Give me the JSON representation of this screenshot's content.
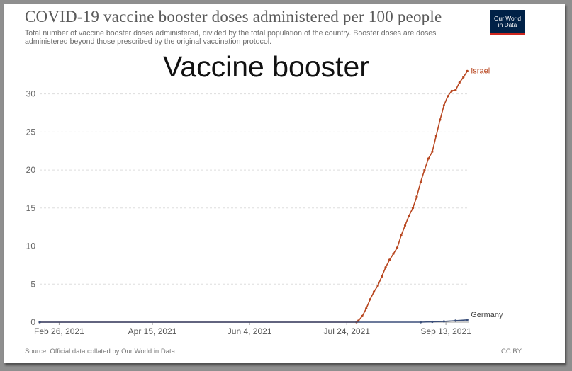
{
  "title": "COVID-19 vaccine booster doses administered per 100 people",
  "subtitle": "Total number of vaccine booster doses administered, divided by the total population of the country. Booster doses are doses administered beyond those prescribed by the original vaccination protocol.",
  "logo_line1": "Our World",
  "logo_line2": "in Data",
  "overlay_text": "Vaccine booster",
  "source": "Source: Official data collated by Our World in Data.",
  "license": "CC BY",
  "colors": {
    "israel": "#b8461f",
    "germany": "#3b4f7a",
    "grid": "#dddddd"
  },
  "chart_data": {
    "type": "line",
    "title": "COVID-19 vaccine booster doses administered per 100 people",
    "xlabel": "",
    "ylabel": "",
    "x_axis": "date",
    "xlim": [
      "2021-02-16",
      "2021-09-25"
    ],
    "ylim": [
      0,
      33.5
    ],
    "yticks": [
      0,
      5,
      10,
      15,
      20,
      25,
      30
    ],
    "xticks": [
      {
        "date": "2021-02-26",
        "label": "Feb 26, 2021"
      },
      {
        "date": "2021-04-15",
        "label": "Apr 15, 2021"
      },
      {
        "date": "2021-06-04",
        "label": "Jun 4, 2021"
      },
      {
        "date": "2021-07-24",
        "label": "Jul 24, 2021"
      },
      {
        "date": "2021-09-13",
        "label": "Sep 13, 2021"
      }
    ],
    "grid": true,
    "series": [
      {
        "name": "Israel",
        "points": [
          [
            "2021-02-16",
            0
          ],
          [
            "2021-07-29",
            0
          ],
          [
            "2021-07-30",
            0.2
          ],
          [
            "2021-08-01",
            0.8
          ],
          [
            "2021-08-03",
            1.8
          ],
          [
            "2021-08-05",
            3.0
          ],
          [
            "2021-08-07",
            4.0
          ],
          [
            "2021-08-09",
            4.8
          ],
          [
            "2021-08-11",
            6.0
          ],
          [
            "2021-08-13",
            7.2
          ],
          [
            "2021-08-15",
            8.2
          ],
          [
            "2021-08-17",
            9.0
          ],
          [
            "2021-08-19",
            9.8
          ],
          [
            "2021-08-21",
            11.4
          ],
          [
            "2021-08-23",
            12.7
          ],
          [
            "2021-08-25",
            14.0
          ],
          [
            "2021-08-27",
            15.0
          ],
          [
            "2021-08-29",
            16.5
          ],
          [
            "2021-08-31",
            18.4
          ],
          [
            "2021-09-02",
            20.0
          ],
          [
            "2021-09-04",
            21.5
          ],
          [
            "2021-09-06",
            22.4
          ],
          [
            "2021-09-08",
            24.5
          ],
          [
            "2021-09-10",
            26.6
          ],
          [
            "2021-09-12",
            28.5
          ],
          [
            "2021-09-14",
            29.7
          ],
          [
            "2021-09-16",
            30.4
          ],
          [
            "2021-09-18",
            30.5
          ],
          [
            "2021-09-20",
            31.5
          ],
          [
            "2021-09-22",
            32.2
          ],
          [
            "2021-09-24",
            33.0
          ]
        ]
      },
      {
        "name": "Germany",
        "points": [
          [
            "2021-02-16",
            0
          ],
          [
            "2021-08-31",
            0
          ],
          [
            "2021-09-06",
            0.05
          ],
          [
            "2021-09-12",
            0.1
          ],
          [
            "2021-09-18",
            0.2
          ],
          [
            "2021-09-24",
            0.3
          ]
        ]
      }
    ]
  }
}
